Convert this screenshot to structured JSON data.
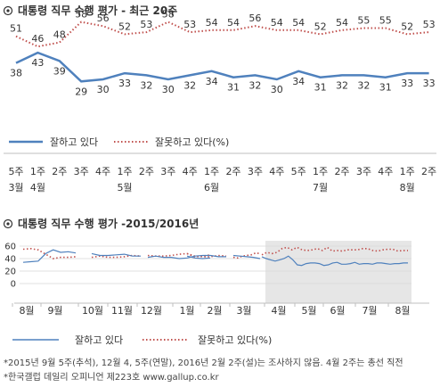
{
  "colors": {
    "approve": "#4f81bd",
    "disapprove": "#c0504d",
    "highlight": "#e6e6e6"
  },
  "chart_data": [
    {
      "type": "line",
      "title": "대통령 직무 수행 평가 - 최근 20주",
      "categories": [
        [
          "5주",
          "3월"
        ],
        [
          "1주",
          "4월"
        ],
        [
          "2주"
        ],
        [
          "3주"
        ],
        [
          "4주"
        ],
        [
          "1주",
          "5월"
        ],
        [
          "2주"
        ],
        [
          "3주"
        ],
        [
          "4주"
        ],
        [
          "1주",
          "6월"
        ],
        [
          "2주"
        ],
        [
          "3주"
        ],
        [
          "4주"
        ],
        [
          "5주"
        ],
        [
          "1주",
          "7월"
        ],
        [
          "2주"
        ],
        [
          "3주"
        ],
        [
          "4주"
        ],
        [
          "1주",
          "8월"
        ],
        [
          "2주"
        ]
      ],
      "series": [
        {
          "name": "잘하고 있다",
          "values": [
            38,
            43,
            39,
            29,
            30,
            33,
            32,
            30,
            32,
            34,
            31,
            32,
            30,
            34,
            31,
            32,
            32,
            31,
            33,
            33
          ]
        },
        {
          "name": "잘못하고 있다(%)",
          "values": [
            51,
            46,
            48,
            58,
            56,
            52,
            53,
            58,
            53,
            54,
            54,
            56,
            54,
            54,
            52,
            54,
            55,
            55,
            52,
            53
          ]
        }
      ],
      "legend": "bottom"
    },
    {
      "type": "line",
      "title": "대통령 직무 수행 평가 -2015/2016년",
      "ylim": [
        0,
        60
      ],
      "yticks": [
        "0",
        "20",
        "40",
        "60"
      ],
      "xticks": [
        "8월",
        "9월",
        "10월",
        "11월",
        "12월",
        "1월",
        "2월",
        "3월",
        "4월",
        "5월",
        "6월",
        "7월",
        "8월"
      ],
      "series": [
        {
          "name": "잘하고 있다",
          "segments": [
            [
              34,
              35,
              36,
              48,
              54,
              50,
              51,
              49
            ],
            [
              48,
              45,
              45,
              46,
              47,
              44,
              44
            ],
            [
              42,
              44,
              42,
              42,
              40,
              41,
              44,
              45,
              45,
              43,
              43
            ],
            [
              44,
              41,
              40,
              41
            ],
            [
              45,
              44,
              43,
              42,
              40
            ],
            [
              43,
              40,
              38,
              36,
              38,
              40,
              44,
              38,
              30,
              29,
              32,
              33,
              33,
              32,
              29,
              30,
              33,
              34,
              31,
              31,
              32,
              34,
              31,
              32,
              32,
              31,
              33,
              33,
              32,
              31,
              32,
              32,
              33,
              33
            ]
          ]
        },
        {
          "name": "잘못하고 있다(%)",
          "segments": [
            [
              55,
              56,
              54,
              47,
              40,
              42,
              42,
              43
            ],
            [
              42,
              44,
              42,
              42,
              43,
              45,
              44
            ],
            [
              45,
              44,
              44,
              45,
              47,
              48,
              44,
              43,
              43,
              45,
              44
            ],
            [
              48,
              43,
              44,
              46
            ],
            [
              42,
              41,
              44,
              45,
              46,
              49,
              48
            ],
            [
              46,
              50,
              48,
              50,
              56,
              58,
              54,
              58,
              54,
              53,
              54,
              56,
              53,
              58,
              52,
              53,
              52,
              54,
              54,
              54,
              56,
              56,
              53,
              52,
              54,
              55,
              55,
              52,
              53,
              53
            ]
          ]
        }
      ],
      "highlight": "최근 20주",
      "legend": "bottom"
    }
  ],
  "notes": [
    "*2015년 9월 5주(추석), 12월 4, 5주(연말), 2016년 2월 2주(설)는 조사하지 않음. 4월 2주는 총선 직전",
    "*한국갤럽 데일리 오피니언 제223호 www.gallup.co.kr"
  ],
  "legend_labels": {
    "approve": "잘하고 있다",
    "disapprove": "잘못하고 있다(%)"
  }
}
